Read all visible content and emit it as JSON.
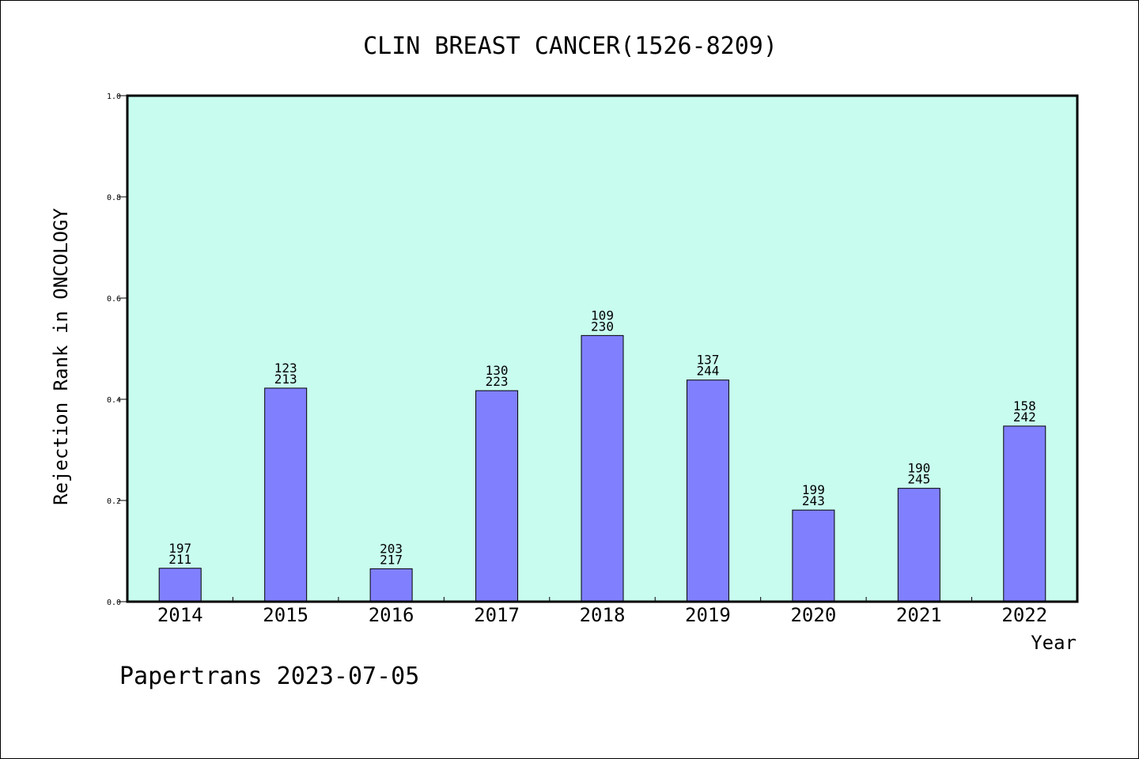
{
  "chart_data": {
    "type": "bar",
    "title": "CLIN BREAST CANCER(1526-8209)",
    "xlabel": "Year",
    "ylabel": "Rejection Rank in ONCOLOGY",
    "ylim": [
      0,
      1.0
    ],
    "yticks": [
      "0.0",
      "0.2",
      "0.4",
      "0.6",
      "0.8",
      "1.0"
    ],
    "categories": [
      "2014",
      "2015",
      "2016",
      "2017",
      "2018",
      "2019",
      "2020",
      "2021",
      "2022"
    ],
    "values": [
      0.066,
      0.422,
      0.065,
      0.417,
      0.526,
      0.438,
      0.181,
      0.224,
      0.347
    ],
    "labels_top": [
      "197",
      "123",
      "203",
      "130",
      "109",
      "137",
      "199",
      "190",
      "158"
    ],
    "labels_bottom": [
      "211",
      "213",
      "217",
      "223",
      "230",
      "244",
      "243",
      "245",
      "242"
    ],
    "grid": false,
    "colors": {
      "plot_background": "#c8fcee",
      "bar_fill": "#8080ff",
      "bar_stroke": "#000000"
    }
  },
  "footer": {
    "text": "Papertrans 2023-07-05"
  }
}
